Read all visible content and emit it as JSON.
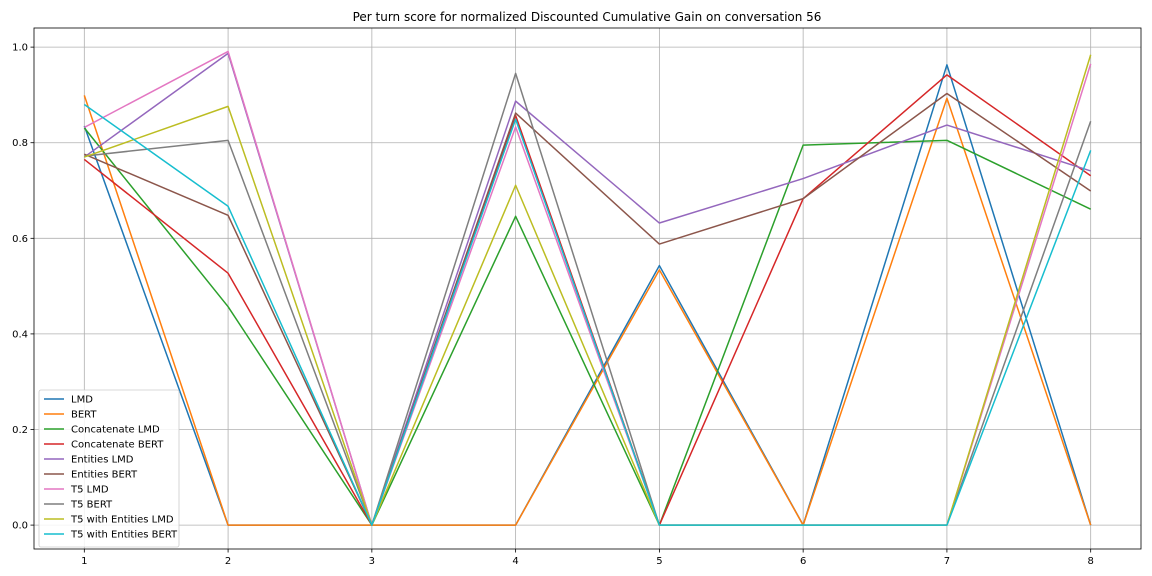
{
  "chart_data": {
    "type": "line",
    "title": "Per turn score for normalized Discounted Cumulative Gain on conversation 56",
    "xlabel": "",
    "ylabel": "",
    "x": [
      1,
      2,
      3,
      4,
      5,
      6,
      7,
      8
    ],
    "xlim": [
      0.65,
      8.35
    ],
    "ylim": [
      -0.05,
      1.04
    ],
    "xticks": [
      "1",
      "2",
      "3",
      "4",
      "5",
      "6",
      "7",
      "8"
    ],
    "yticks": [
      "0.0",
      "0.2",
      "0.4",
      "0.6",
      "0.8",
      "1.0"
    ],
    "ytick_values": [
      0.0,
      0.2,
      0.4,
      0.6,
      0.8,
      1.0
    ],
    "grid": true,
    "legend_position": "lower-left",
    "series": [
      {
        "name": "LMD",
        "color": "#1f77b4",
        "values": [
          0.835,
          0.0,
          0.0,
          0.0,
          0.543,
          0.0,
          0.963,
          0.0
        ]
      },
      {
        "name": "BERT",
        "color": "#ff7f0e",
        "values": [
          0.899,
          0.0,
          0.0,
          0.0,
          0.534,
          0.0,
          0.893,
          0.0
        ]
      },
      {
        "name": "Concatenate LMD",
        "color": "#2ca02c",
        "values": [
          0.831,
          0.457,
          0.0,
          0.646,
          0.0,
          0.795,
          0.805,
          0.661
        ]
      },
      {
        "name": "Concatenate BERT",
        "color": "#d62728",
        "values": [
          0.765,
          0.527,
          0.0,
          0.857,
          0.0,
          0.683,
          0.942,
          0.731
        ]
      },
      {
        "name": "Entities LMD",
        "color": "#9467bd",
        "values": [
          0.77,
          0.987,
          0.0,
          0.887,
          0.632,
          0.725,
          0.837,
          0.741
        ]
      },
      {
        "name": "Entities BERT",
        "color": "#8c564b",
        "values": [
          0.776,
          0.648,
          0.0,
          0.862,
          0.588,
          0.683,
          0.903,
          0.699
        ]
      },
      {
        "name": "T5 LMD",
        "color": "#e377c2",
        "values": [
          0.832,
          0.991,
          0.0,
          0.833,
          0.0,
          0.0,
          0.0,
          0.965
        ]
      },
      {
        "name": "T5 BERT",
        "color": "#7f7f7f",
        "values": [
          0.772,
          0.805,
          0.0,
          0.945,
          0.0,
          0.0,
          0.0,
          0.845
        ]
      },
      {
        "name": "T5 with Entities LMD",
        "color": "#bcbd22",
        "values": [
          0.77,
          0.876,
          0.0,
          0.711,
          0.0,
          0.0,
          0.0,
          0.984
        ]
      },
      {
        "name": "T5 with Entities BERT",
        "color": "#17becf",
        "values": [
          0.88,
          0.667,
          0.0,
          0.849,
          0.0,
          0.0,
          0.0,
          0.784
        ]
      }
    ]
  }
}
